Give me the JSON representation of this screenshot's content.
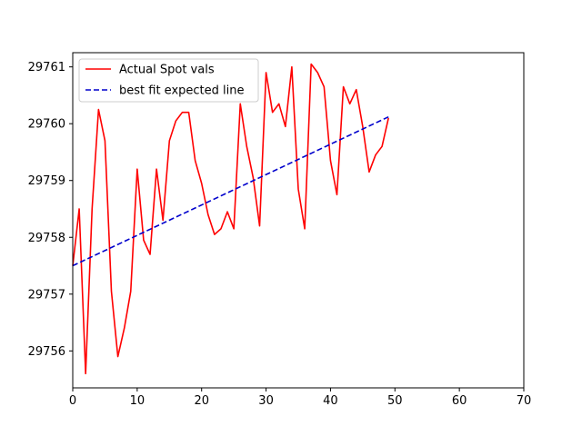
{
  "chart_data": {
    "type": "line",
    "title": "",
    "xlabel": "",
    "ylabel": "",
    "xlim": [
      0,
      70
    ],
    "ylim": [
      29755.35,
      29761.25
    ],
    "x_ticks": [
      0,
      10,
      20,
      30,
      40,
      50,
      60,
      70
    ],
    "y_ticks": [
      29756,
      29757,
      29758,
      29759,
      29760,
      29761
    ],
    "grid": false,
    "legend_position": "upper left",
    "series": [
      {
        "name": "Actual Spot vals",
        "color": "#ff0000",
        "style": "solid",
        "x": [
          0,
          1,
          2,
          3,
          4,
          5,
          6,
          7,
          8,
          9,
          10,
          11,
          12,
          13,
          14,
          15,
          16,
          17,
          18,
          19,
          20,
          21,
          22,
          23,
          24,
          25,
          26,
          27,
          28,
          29,
          30,
          31,
          32,
          33,
          34,
          35,
          36,
          37,
          38,
          39,
          40,
          41,
          42,
          43,
          44,
          45,
          46,
          47,
          48,
          49
        ],
        "y": [
          29757.5,
          29758.5,
          29755.6,
          29758.5,
          29760.25,
          29759.7,
          29757.05,
          29755.9,
          29756.4,
          29757.05,
          29759.2,
          29757.95,
          29757.7,
          29759.2,
          29758.3,
          29759.7,
          29760.05,
          29760.2,
          29760.2,
          29759.35,
          29758.95,
          29758.4,
          29758.05,
          29758.15,
          29758.45,
          29758.15,
          29760.35,
          29759.6,
          29759.05,
          29758.2,
          29760.9,
          29760.2,
          29760.35,
          29759.95,
          29761.0,
          29758.85,
          29758.15,
          29761.05,
          29760.9,
          29760.65,
          29759.35,
          29758.75,
          29760.65,
          29760.35,
          29760.6,
          29759.95,
          29759.15,
          29759.45,
          29759.6,
          29760.1
        ]
      },
      {
        "name": "best fit expected line",
        "color": "#0000cc",
        "style": "dashed",
        "x": [
          0,
          49
        ],
        "y": [
          29757.5,
          29760.12
        ]
      }
    ]
  }
}
